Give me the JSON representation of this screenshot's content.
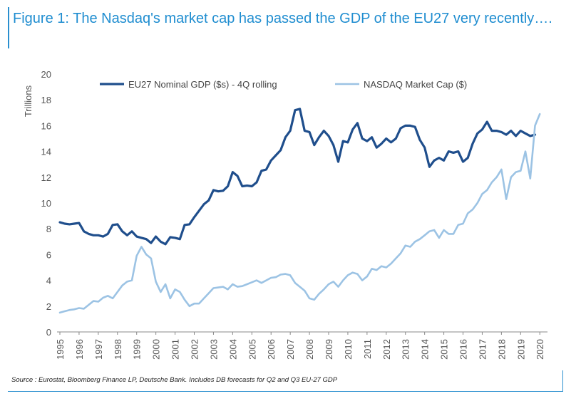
{
  "header": {
    "title": "Figure 1: The Nasdaq's market cap has passed the GDP of the EU27 very recently…."
  },
  "footer": {
    "source": "Source : Eurostat, Bloomberg Finance LP, Deutsche Bank. Includes DB forecasts for Q2 and Q3 EU-27 GDP"
  },
  "colors": {
    "title": "#1f8dd0",
    "eu27": "#1f4e8c",
    "nasdaq": "#9cc3e4",
    "axis": "#888888",
    "frame": "#2a8fcf"
  },
  "chart_data": {
    "type": "line",
    "title": "",
    "xlabel": "",
    "ylabel": "Trillions",
    "xlim": [
      1995,
      2020.4
    ],
    "ylim": [
      0,
      20
    ],
    "yticks": [
      0,
      2,
      4,
      6,
      8,
      10,
      12,
      14,
      16,
      18,
      20
    ],
    "xticks": [
      "1995",
      "1996",
      "1997",
      "1998",
      "1999",
      "2000",
      "2001",
      "2002",
      "2003",
      "2004",
      "2005",
      "2006",
      "2007",
      "2008",
      "2009",
      "2010",
      "2011",
      "2012",
      "2013",
      "2014",
      "2015",
      "2016",
      "2017",
      "2018",
      "2019",
      "2020"
    ],
    "grid": false,
    "legend_position": "top",
    "series": [
      {
        "name": "EU27  Nominal GDP ($s) - 4Q rolling",
        "color": "#1f4e8c",
        "points": [
          [
            1995.0,
            8.5
          ],
          [
            1995.25,
            8.4
          ],
          [
            1995.5,
            8.35
          ],
          [
            1995.75,
            8.4
          ],
          [
            1996.0,
            8.45
          ],
          [
            1996.25,
            7.8
          ],
          [
            1996.5,
            7.6
          ],
          [
            1996.75,
            7.5
          ],
          [
            1997.0,
            7.5
          ],
          [
            1997.25,
            7.4
          ],
          [
            1997.5,
            7.6
          ],
          [
            1997.75,
            8.3
          ],
          [
            1998.0,
            8.35
          ],
          [
            1998.25,
            7.8
          ],
          [
            1998.5,
            7.5
          ],
          [
            1998.75,
            7.8
          ],
          [
            1999.0,
            7.4
          ],
          [
            1999.25,
            7.3
          ],
          [
            1999.5,
            7.2
          ],
          [
            1999.75,
            6.9
          ],
          [
            2000.0,
            7.4
          ],
          [
            2000.25,
            7.0
          ],
          [
            2000.5,
            6.8
          ],
          [
            2000.75,
            7.35
          ],
          [
            2001.0,
            7.3
          ],
          [
            2001.25,
            7.2
          ],
          [
            2001.5,
            8.3
          ],
          [
            2001.75,
            8.35
          ],
          [
            2002.0,
            8.9
          ],
          [
            2002.25,
            9.4
          ],
          [
            2002.5,
            9.9
          ],
          [
            2002.75,
            10.2
          ],
          [
            2003.0,
            11.0
          ],
          [
            2003.25,
            10.9
          ],
          [
            2003.5,
            10.95
          ],
          [
            2003.75,
            11.3
          ],
          [
            2004.0,
            12.4
          ],
          [
            2004.25,
            12.1
          ],
          [
            2004.5,
            11.3
          ],
          [
            2004.75,
            11.35
          ],
          [
            2005.0,
            11.3
          ],
          [
            2005.25,
            11.6
          ],
          [
            2005.5,
            12.5
          ],
          [
            2005.75,
            12.6
          ],
          [
            2006.0,
            13.3
          ],
          [
            2006.25,
            13.7
          ],
          [
            2006.5,
            14.1
          ],
          [
            2006.75,
            15.1
          ],
          [
            2007.0,
            15.6
          ],
          [
            2007.25,
            17.2
          ],
          [
            2007.5,
            17.3
          ],
          [
            2007.75,
            15.6
          ],
          [
            2008.0,
            15.5
          ],
          [
            2008.25,
            14.5
          ],
          [
            2008.5,
            15.1
          ],
          [
            2008.75,
            15.6
          ],
          [
            2009.0,
            15.2
          ],
          [
            2009.25,
            14.5
          ],
          [
            2009.5,
            13.2
          ],
          [
            2009.75,
            14.8
          ],
          [
            2010.0,
            14.7
          ],
          [
            2010.25,
            15.7
          ],
          [
            2010.5,
            16.2
          ],
          [
            2010.75,
            15.0
          ],
          [
            2011.0,
            14.8
          ],
          [
            2011.25,
            15.1
          ],
          [
            2011.5,
            14.3
          ],
          [
            2011.75,
            14.6
          ],
          [
            2012.0,
            15.0
          ],
          [
            2012.25,
            14.7
          ],
          [
            2012.5,
            15.0
          ],
          [
            2012.75,
            15.8
          ],
          [
            2013.0,
            16.0
          ],
          [
            2013.25,
            16.0
          ],
          [
            2013.5,
            15.9
          ],
          [
            2013.75,
            14.9
          ],
          [
            2014.0,
            14.3
          ],
          [
            2014.25,
            12.8
          ],
          [
            2014.5,
            13.3
          ],
          [
            2014.75,
            13.5
          ],
          [
            2015.0,
            13.3
          ],
          [
            2015.25,
            14.0
          ],
          [
            2015.5,
            13.9
          ],
          [
            2015.75,
            14.0
          ],
          [
            2016.0,
            13.2
          ],
          [
            2016.25,
            13.5
          ],
          [
            2016.5,
            14.6
          ],
          [
            2016.75,
            15.4
          ],
          [
            2017.0,
            15.7
          ],
          [
            2017.25,
            16.3
          ],
          [
            2017.5,
            15.6
          ],
          [
            2017.75,
            15.6
          ],
          [
            2018.0,
            15.5
          ],
          [
            2018.25,
            15.3
          ],
          [
            2018.5,
            15.6
          ],
          [
            2018.75,
            15.2
          ],
          [
            2019.0,
            15.6
          ],
          [
            2019.25,
            15.4
          ],
          [
            2019.5,
            15.2
          ],
          [
            2019.75,
            15.3
          ]
        ]
      },
      {
        "name": "NASDAQ Market Cap ($)",
        "color": "#9cc3e4",
        "points": [
          [
            1995.0,
            1.5
          ],
          [
            1995.25,
            1.6
          ],
          [
            1995.5,
            1.7
          ],
          [
            1995.75,
            1.75
          ],
          [
            1996.0,
            1.85
          ],
          [
            1996.25,
            1.8
          ],
          [
            1996.5,
            2.1
          ],
          [
            1996.75,
            2.4
          ],
          [
            1997.0,
            2.35
          ],
          [
            1997.25,
            2.65
          ],
          [
            1997.5,
            2.8
          ],
          [
            1997.75,
            2.6
          ],
          [
            1998.0,
            3.1
          ],
          [
            1998.25,
            3.6
          ],
          [
            1998.5,
            3.9
          ],
          [
            1998.75,
            4.0
          ],
          [
            1999.0,
            5.9
          ],
          [
            1999.25,
            6.6
          ],
          [
            1999.5,
            6.0
          ],
          [
            1999.75,
            5.7
          ],
          [
            2000.0,
            3.9
          ],
          [
            2000.25,
            3.1
          ],
          [
            2000.5,
            3.7
          ],
          [
            2000.75,
            2.6
          ],
          [
            2001.0,
            3.3
          ],
          [
            2001.25,
            3.1
          ],
          [
            2001.5,
            2.5
          ],
          [
            2001.75,
            2.0
          ],
          [
            2002.0,
            2.2
          ],
          [
            2002.25,
            2.2
          ],
          [
            2002.5,
            2.6
          ],
          [
            2002.75,
            3.0
          ],
          [
            2003.0,
            3.4
          ],
          [
            2003.25,
            3.45
          ],
          [
            2003.5,
            3.5
          ],
          [
            2003.75,
            3.3
          ],
          [
            2004.0,
            3.7
          ],
          [
            2004.25,
            3.5
          ],
          [
            2004.5,
            3.55
          ],
          [
            2004.75,
            3.7
          ],
          [
            2005.0,
            3.85
          ],
          [
            2005.25,
            4.0
          ],
          [
            2005.5,
            3.8
          ],
          [
            2005.75,
            4.0
          ],
          [
            2006.0,
            4.2
          ],
          [
            2006.25,
            4.25
          ],
          [
            2006.5,
            4.45
          ],
          [
            2006.75,
            4.5
          ],
          [
            2007.0,
            4.4
          ],
          [
            2007.25,
            3.8
          ],
          [
            2007.5,
            3.5
          ],
          [
            2007.75,
            3.2
          ],
          [
            2008.0,
            2.6
          ],
          [
            2008.25,
            2.5
          ],
          [
            2008.5,
            2.95
          ],
          [
            2008.75,
            3.3
          ],
          [
            2009.0,
            3.7
          ],
          [
            2009.25,
            3.9
          ],
          [
            2009.5,
            3.5
          ],
          [
            2009.75,
            4.0
          ],
          [
            2010.0,
            4.4
          ],
          [
            2010.25,
            4.6
          ],
          [
            2010.5,
            4.5
          ],
          [
            2010.75,
            4.0
          ],
          [
            2011.0,
            4.3
          ],
          [
            2011.25,
            4.9
          ],
          [
            2011.5,
            4.8
          ],
          [
            2011.75,
            5.1
          ],
          [
            2012.0,
            5.0
          ],
          [
            2012.25,
            5.3
          ],
          [
            2012.5,
            5.7
          ],
          [
            2012.75,
            6.1
          ],
          [
            2013.0,
            6.7
          ],
          [
            2013.25,
            6.6
          ],
          [
            2013.5,
            7.0
          ],
          [
            2013.75,
            7.2
          ],
          [
            2014.0,
            7.5
          ],
          [
            2014.25,
            7.8
          ],
          [
            2014.5,
            7.9
          ],
          [
            2014.75,
            7.3
          ],
          [
            2015.0,
            7.9
          ],
          [
            2015.25,
            7.6
          ],
          [
            2015.5,
            7.6
          ],
          [
            2015.75,
            8.3
          ],
          [
            2016.0,
            8.4
          ],
          [
            2016.25,
            9.2
          ],
          [
            2016.5,
            9.5
          ],
          [
            2016.75,
            10.0
          ],
          [
            2017.0,
            10.7
          ],
          [
            2017.25,
            11.0
          ],
          [
            2017.5,
            11.6
          ],
          [
            2017.75,
            12.0
          ],
          [
            2018.0,
            12.6
          ],
          [
            2018.25,
            10.3
          ],
          [
            2018.5,
            12.0
          ],
          [
            2018.75,
            12.4
          ],
          [
            2019.0,
            12.5
          ],
          [
            2019.25,
            14.0
          ],
          [
            2019.5,
            11.9
          ],
          [
            2019.75,
            16.0
          ],
          [
            2020.0,
            16.9
          ]
        ]
      }
    ]
  }
}
